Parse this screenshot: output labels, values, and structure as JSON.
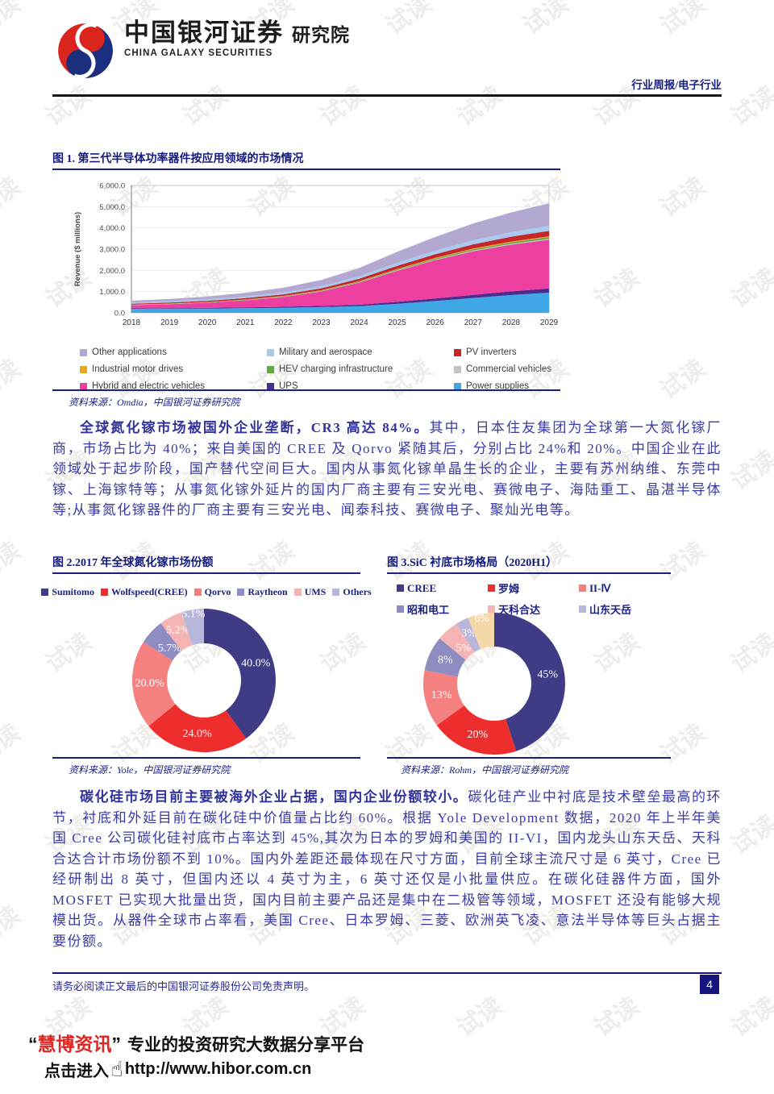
{
  "watermark": {
    "text": "试读"
  },
  "header": {
    "brand_cn": "中国银河证券",
    "brand_inst": "研究院",
    "brand_en": "CHINA GALAXY SECURITIES",
    "report_type": "行业周报/电子行业"
  },
  "figure1": {
    "title": "图 1. 第三代半导体功率器件按应用领域的市场情况",
    "source": "资料来源：Omdia，中国银河证券研究院"
  },
  "paragraph1": {
    "bold": "全球氮化镓市场被国外企业垄断，CR3 高达 84%。",
    "rest": "其中，日本住友集团为全球第一大氮化镓厂商，市场占比为 40%；来自美国的 CREE 及 Qorvo 紧随其后，分别占比 24%和 20%。中国企业在此领域处于起步阶段，国产替代空间巨大。国内从事氮化镓单晶生长的企业，主要有苏州纳维、东莞中镓、上海镓特等；从事氮化镓外延片的国内厂商主要有三安光电、赛微电子、海陆重工、晶湛半导体等;从事氮化镓器件的厂商主要有三安光电、闻泰科技、赛微电子、聚灿光电等。"
  },
  "figure2": {
    "title": "图 2.2017 年全球氮化镓市场份额",
    "source": "资料来源：Yole，中国银河证券研究院"
  },
  "figure3": {
    "title": "图 3.SiC 衬底市场格局（2020H1）",
    "source": "资料来源：Rohm，中国银河证券研究院"
  },
  "paragraph2": {
    "bold": "碳化硅市场目前主要被海外企业占据，国内企业份额较小。",
    "rest": "碳化硅产业中衬底是技术壁垒最高的环节，衬底和外延目前在碳化硅中价值量占比约 60%。根据 Yole Development 数据，2020 年上半年美国 Cree 公司碳化硅衬底市占率达到 45%,其次为日本的罗姆和美国的 II-VI，国内龙头山东天岳、天科合达合计市场份额不到 10%。国内外差距还最体现在尺寸方面，目前全球主流尺寸是 6 英寸，Cree 已经研制出 8 英寸，但国内还以 4 英寸为主，6 英寸还仅是小批量供应。在碳化硅器件方面，国外 MOSFET 已实现大批量出货，国内目前主要产品还是集中在二极管等领域，MOSFET 还没有能够大规模出货。从器件全球市占率看，美国 Cree、日本罗姆、三菱、欧洲英飞凌、意法半导体等巨头占据主要份额。"
  },
  "footer": {
    "disclaimer": "请务必阅读正文最后的中国银河证券股份公司免责声明。",
    "page_number": "4"
  },
  "brandbar": {
    "quote_open": "“",
    "name": "慧博资讯",
    "quote_close": "”",
    "tagline": "专业的投资研究大数据分享平台",
    "cta": "点击进入",
    "hand_icon": "☝",
    "url": "http://www.hibor.com.cn"
  },
  "chart_data": [
    {
      "type": "area",
      "stacked": true,
      "title": "图 1. 第三代半导体功率器件按应用领域的市场情况",
      "xlabel": "",
      "ylabel": "Revenue ($ millions)",
      "x": [
        2018,
        2019,
        2020,
        2021,
        2022,
        2023,
        2024,
        2025,
        2026,
        2027,
        2028,
        2029
      ],
      "ylim": [
        0,
        6000
      ],
      "ytick_step": 1000,
      "grid": true,
      "legend_position": "bottom",
      "series": [
        {
          "name": "Power supplies",
          "color": "#3fa7e6",
          "values": [
            185,
            195,
            205,
            220,
            240,
            270,
            310,
            420,
            555,
            700,
            835,
            950
          ]
        },
        {
          "name": "UPS",
          "color": "#4d2c8f",
          "values": [
            25,
            28,
            32,
            38,
            46,
            56,
            70,
            95,
            120,
            148,
            175,
            200
          ]
        },
        {
          "name": "Hybrid and electric vehicles",
          "color": "#ec3f9f",
          "values": [
            150,
            185,
            240,
            330,
            460,
            680,
            1040,
            1460,
            1800,
            2050,
            2200,
            2290
          ]
        },
        {
          "name": "Commercial vehicles",
          "color": "#c3c3c3",
          "values": [
            8,
            9,
            10,
            12,
            14,
            17,
            21,
            26,
            31,
            36,
            41,
            46
          ]
        },
        {
          "name": "HEV charging infrastructure",
          "color": "#62a845",
          "values": [
            8,
            10,
            12,
            15,
            19,
            24,
            31,
            40,
            48,
            56,
            64,
            72
          ]
        },
        {
          "name": "Industrial motor drives",
          "color": "#e2a91f",
          "values": [
            8,
            9,
            10,
            12,
            14,
            17,
            21,
            26,
            31,
            36,
            41,
            46
          ]
        },
        {
          "name": "PV inverters",
          "color": "#c8252b",
          "values": [
            45,
            50,
            57,
            65,
            75,
            90,
            113,
            143,
            171,
            199,
            227,
            255
          ]
        },
        {
          "name": "Military and aerospace",
          "color": "#a9c9ef",
          "values": [
            55,
            60,
            67,
            75,
            85,
            98,
            118,
            142,
            167,
            192,
            216,
            240
          ]
        },
        {
          "name": "Other applications",
          "color": "#b2a8d1",
          "values": [
            85,
            105,
            135,
            175,
            228,
            298,
            388,
            518,
            648,
            788,
            928,
            1058
          ]
        }
      ]
    },
    {
      "type": "pie",
      "donut": true,
      "title": "图 2.2017 年全球氮化镓市场份额",
      "labels": [
        "Sumitomo",
        "Wolfspeed(CREE)",
        "Qorvo",
        "Raytheon",
        "UMS",
        "Others"
      ],
      "values": [
        40.0,
        24.0,
        20.0,
        5.7,
        5.2,
        5.1
      ],
      "display": [
        "40.0%",
        "24.0%",
        "20.0%",
        "5.7%",
        "5.2%",
        "5.1%"
      ],
      "colors": [
        "#3f3c85",
        "#ee2d2d",
        "#f58080",
        "#8e8cc0",
        "#f5b3b3",
        "#b8b6da"
      ],
      "legend_position": "top"
    },
    {
      "type": "pie",
      "donut": true,
      "title": "图 3.SiC 衬底市场格局（2020H1）",
      "labels": [
        "CREE",
        "罗姆",
        "II-Ⅳ",
        "昭和电工",
        "天科合达",
        "山东天岳",
        ""
      ],
      "values": [
        45,
        20,
        13,
        8,
        5,
        3,
        6
      ],
      "display": [
        "45%",
        "20%",
        "13%",
        "8%",
        "5%",
        "3%",
        "6%"
      ],
      "colors": [
        "#3f3c85",
        "#ee2d2d",
        "#f58080",
        "#8e8cc0",
        "#f5b3b3",
        "#b8b6da",
        "#f6d7a8"
      ],
      "legend_labels_shown": 6,
      "legend_position": "top"
    }
  ]
}
